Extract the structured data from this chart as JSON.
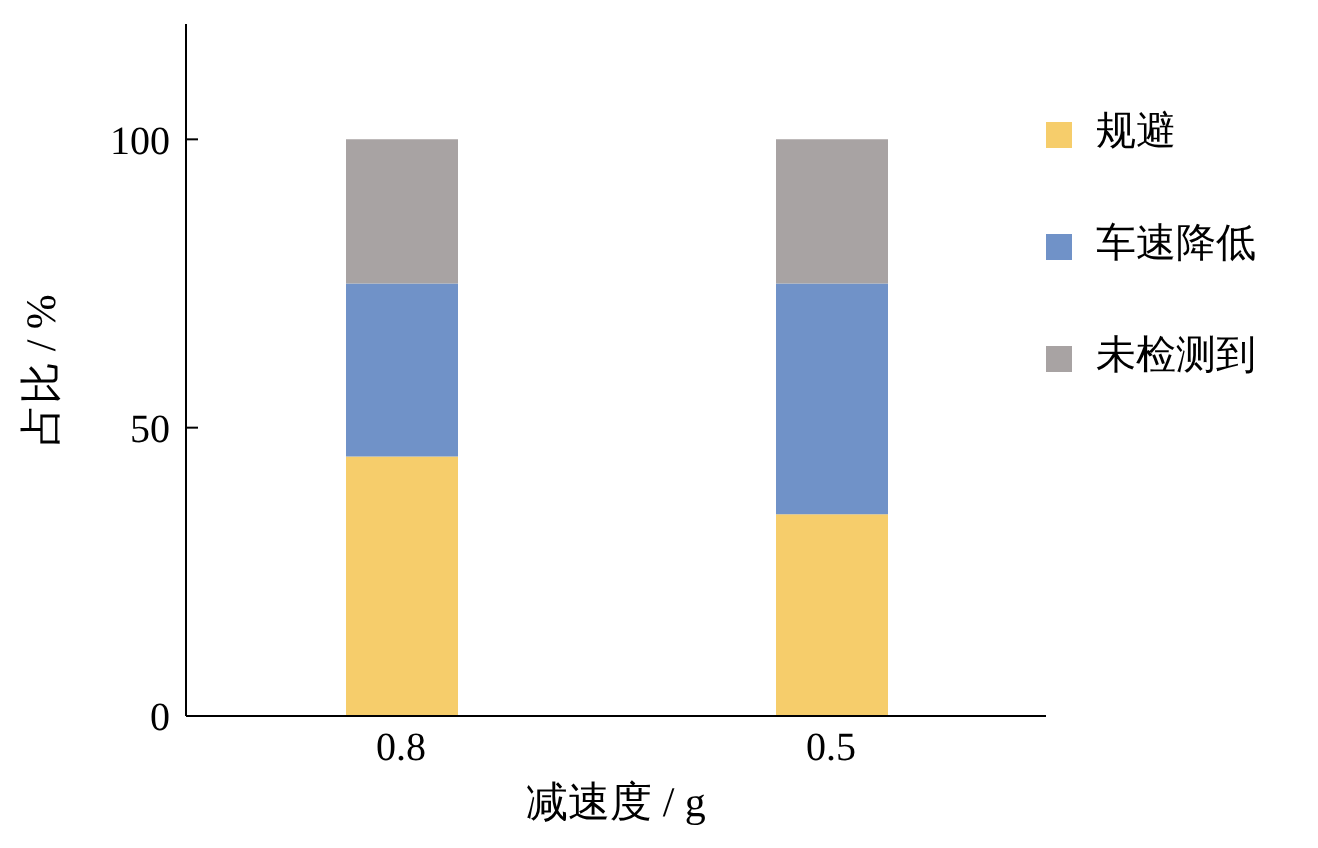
{
  "chart_data": {
    "type": "bar",
    "stacked": true,
    "xlabel": "减速度 / g",
    "ylabel": "占比 / %",
    "categories": [
      "0.8",
      "0.5"
    ],
    "series": [
      {
        "name": "规避",
        "color": "#f6cd6b",
        "values": [
          45,
          35
        ]
      },
      {
        "name": "车速降低",
        "color": "#7092c8",
        "values": [
          30,
          40
        ]
      },
      {
        "name": "未检测到",
        "color": "#a8a3a3",
        "values": [
          25,
          25
        ]
      }
    ],
    "ylim": [
      0,
      120
    ],
    "yticks": [
      0,
      50,
      100
    ],
    "grid": false,
    "legend": "right"
  }
}
